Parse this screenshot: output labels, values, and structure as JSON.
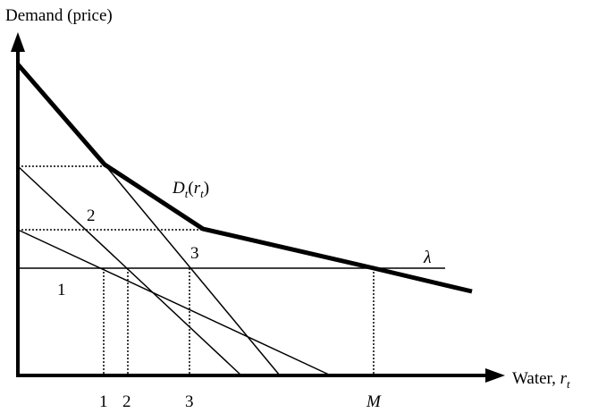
{
  "axes": {
    "y_label": "Demand (price)",
    "x_label_prefix": "Water, ",
    "x_label_var": "r",
    "x_label_sub": "t"
  },
  "aggregate_curve": {
    "label_D": "D",
    "label_sub1": "t",
    "label_open": "(",
    "label_r": "r",
    "label_sub2": "t",
    "label_close": ")"
  },
  "lambda_label": "λ",
  "curve_labels": {
    "one": "1",
    "two": "2",
    "three": "3"
  },
  "x_ticks": {
    "one": "1",
    "two": "2",
    "three": "3",
    "M": "M"
  },
  "colors": {
    "ink": "#000000",
    "background": "#ffffff"
  }
}
